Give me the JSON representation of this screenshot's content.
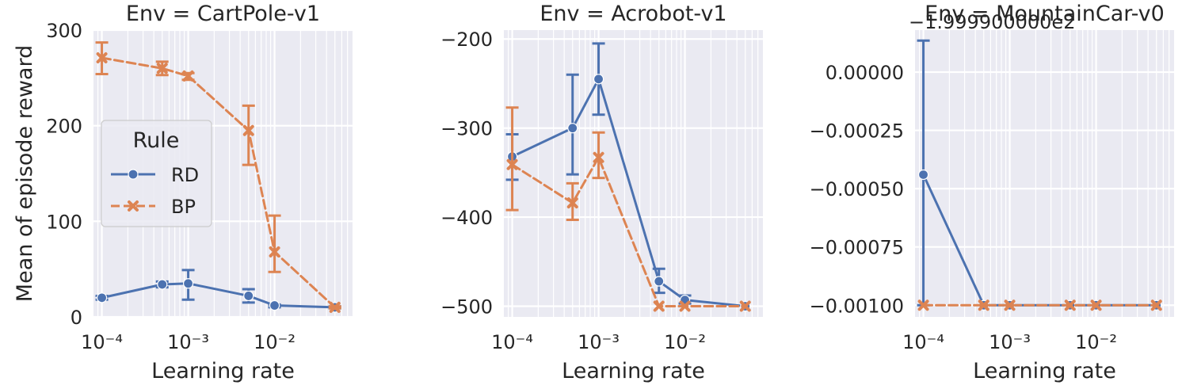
{
  "chart_data": [
    {
      "type": "line",
      "title": "Env = CartPole-v1",
      "xlabel": "Learning rate",
      "ylabel": "Mean of episode reward",
      "xscale": "log",
      "xlim": [
        8e-05,
        0.08
      ],
      "ylim": [
        0,
        300
      ],
      "xticks": [
        0.0001,
        0.001,
        0.01
      ],
      "xtick_labels": [
        "10⁻⁴",
        "10⁻³",
        "10⁻²"
      ],
      "yticks": [
        0,
        100,
        200,
        300
      ],
      "ytick_labels": [
        "0",
        "100",
        "200",
        "300"
      ],
      "grid": true,
      "legend": {
        "title": "Rule",
        "placement": "center-left",
        "entries": [
          "RD",
          "BP"
        ]
      },
      "series": [
        {
          "name": "RD",
          "color": "#4c72b0",
          "marker": "circle",
          "dash": "solid",
          "x": [
            0.0001,
            0.0005,
            0.001,
            0.005,
            0.01,
            0.05
          ],
          "y": [
            20,
            34,
            35,
            22,
            12,
            10
          ],
          "err_low": [
            18,
            31,
            18,
            15,
            10,
            9
          ],
          "err_high": [
            22,
            37,
            49,
            29,
            13,
            11
          ]
        },
        {
          "name": "BP",
          "color": "#dd8452",
          "marker": "x",
          "dash": "dashed",
          "x": [
            0.0001,
            0.0005,
            0.001,
            0.005,
            0.01,
            0.05
          ],
          "y": [
            271,
            260,
            252,
            195,
            68,
            10
          ],
          "err_low": [
            254,
            253,
            248,
            159,
            47,
            9
          ],
          "err_high": [
            287,
            267,
            255,
            221,
            106,
            11
          ]
        }
      ]
    },
    {
      "type": "line",
      "title": "Env = Acrobot-v1",
      "xlabel": "Learning rate",
      "ylabel": "",
      "xscale": "log",
      "xlim": [
        8e-05,
        0.08
      ],
      "ylim": [
        -512,
        -190
      ],
      "xticks": [
        0.0001,
        0.001,
        0.01
      ],
      "xtick_labels": [
        "10⁻⁴",
        "10⁻³",
        "10⁻²"
      ],
      "yticks": [
        -500,
        -400,
        -300,
        -200
      ],
      "ytick_labels": [
        "−500",
        "−400",
        "−300",
        "−200"
      ],
      "grid": true,
      "series": [
        {
          "name": "RD",
          "color": "#4c72b0",
          "marker": "circle",
          "dash": "solid",
          "x": [
            0.0001,
            0.0005,
            0.001,
            0.005,
            0.01,
            0.05
          ],
          "y": [
            -332,
            -300,
            -245,
            -472,
            -493,
            -500
          ],
          "err_low": [
            -358,
            -352,
            -285,
            -485,
            -497,
            -500
          ],
          "err_high": [
            -307,
            -240,
            -205,
            -458,
            -488,
            -500
          ]
        },
        {
          "name": "BP",
          "color": "#dd8452",
          "marker": "x",
          "dash": "dashed",
          "x": [
            0.0001,
            0.0005,
            0.001,
            0.005,
            0.01,
            0.05
          ],
          "y": [
            -341,
            -384,
            -333,
            -500,
            -500,
            -500
          ],
          "err_low": [
            -392,
            -403,
            -356,
            -500,
            -500,
            -500
          ],
          "err_high": [
            -277,
            -362,
            -305,
            -500,
            -500,
            -500
          ]
        }
      ]
    },
    {
      "type": "line",
      "title": "Env = MountainCar-v0",
      "offset_text": "−1.999900000e2",
      "xlabel": "Learning rate",
      "ylabel": "",
      "xscale": "log",
      "xlim": [
        8e-05,
        0.08
      ],
      "ylim": [
        -0.00105,
        0.00018
      ],
      "xticks": [
        0.0001,
        0.001,
        0.01
      ],
      "xtick_labels": [
        "10⁻⁴",
        "10⁻³",
        "10⁻²"
      ],
      "yticks": [
        -0.001,
        -0.00075,
        -0.0005,
        -0.00025,
        0
      ],
      "ytick_labels": [
        "−0.00100",
        "−0.00075",
        "−0.00050",
        "−0.00025",
        "0.00000"
      ],
      "grid": true,
      "series": [
        {
          "name": "RD",
          "color": "#4c72b0",
          "marker": "circle",
          "dash": "solid",
          "x": [
            0.0001,
            0.0005,
            0.001,
            0.005,
            0.01,
            0.05
          ],
          "y": [
            -0.00044,
            -0.001,
            -0.001,
            -0.001,
            -0.001,
            -0.001
          ],
          "err_low": [
            -0.001,
            -0.001,
            -0.001,
            -0.001,
            -0.001,
            -0.001
          ],
          "err_high": [
            0.000135,
            -0.001,
            -0.001,
            -0.001,
            -0.001,
            -0.001
          ]
        },
        {
          "name": "BP",
          "color": "#dd8452",
          "marker": "x",
          "dash": "dashed",
          "x": [
            0.0001,
            0.0005,
            0.001,
            0.005,
            0.01,
            0.05
          ],
          "y": [
            -0.001,
            -0.001,
            -0.001,
            -0.001,
            -0.001,
            -0.001
          ],
          "err_low": [
            -0.001,
            -0.001,
            -0.001,
            -0.001,
            -0.001,
            -0.001
          ],
          "err_high": [
            -0.001,
            -0.001,
            -0.001,
            -0.001,
            -0.001,
            -0.001
          ]
        }
      ]
    }
  ]
}
